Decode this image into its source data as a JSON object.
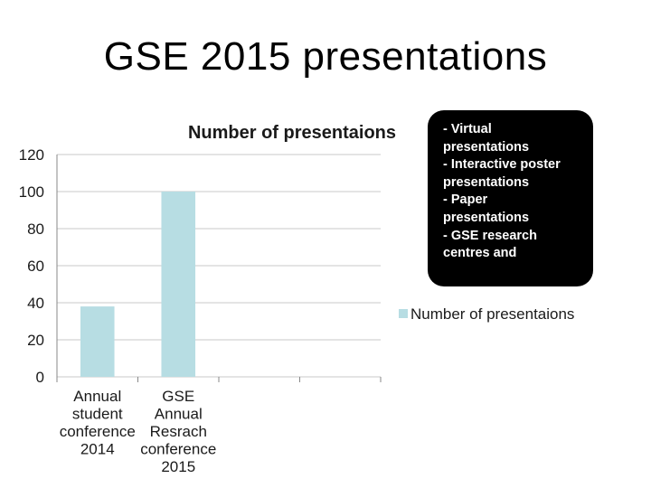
{
  "slide": {
    "title": "GSE 2015 presentations"
  },
  "note": {
    "lines": [
      "- Virtual",
      "presentations",
      "- Interactive poster",
      "presentations",
      "- Paper",
      "presentations",
      "- GSE research",
      "centres and"
    ]
  },
  "chart_data": {
    "type": "bar",
    "title": "Number of presentaions",
    "categories": [
      [
        "Annual",
        "student",
        "conference",
        "2014"
      ],
      [
        "GSE",
        "Annual",
        "Resrach",
        "conference",
        "2015"
      ],
      [],
      []
    ],
    "series": [
      {
        "name": "Number of presentaions",
        "values": [
          38,
          100,
          null,
          null
        ],
        "color": "#b7dde3"
      }
    ],
    "ylim": [
      0,
      120
    ],
    "yticks": [
      0,
      20,
      40,
      60,
      80,
      100,
      120
    ],
    "grid": true,
    "legend": "right",
    "colors": {
      "grid": "#c8c8c8",
      "axis": "#888888"
    }
  }
}
